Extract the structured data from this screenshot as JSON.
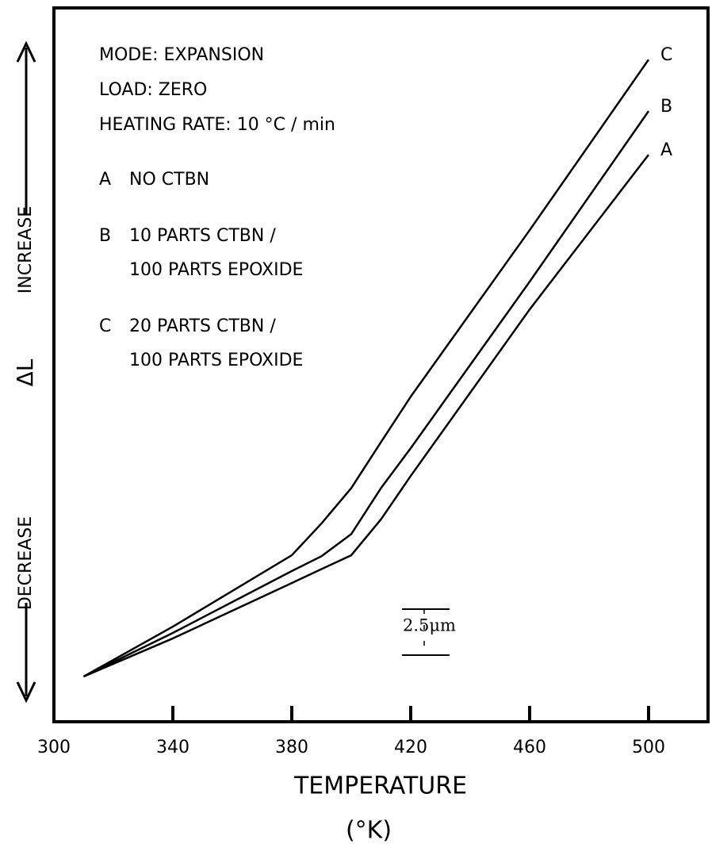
{
  "chart_data": {
    "type": "line",
    "xlabel": "TEMPERATURE",
    "xunit": "(°K)",
    "ylabel": "ΔL",
    "y_increase": "INCREASE",
    "y_decrease": "DECREASE",
    "notes": [
      "MODE: EXPANSION",
      "LOAD: ZERO",
      "HEATING RATE: 10 °C / min"
    ],
    "legend": [
      {
        "key": "A",
        "lines": [
          "NO CTBN"
        ]
      },
      {
        "key": "B",
        "lines": [
          "10 PARTS CTBN /",
          "100 PARTS EPOXIDE"
        ]
      },
      {
        "key": "C",
        "lines": [
          "20 PARTS CTBN /",
          "100 PARTS EPOXIDE"
        ]
      }
    ],
    "x": [
      310,
      340,
      380,
      390,
      400,
      410,
      420,
      460,
      500
    ],
    "series": [
      {
        "name": "A",
        "color": "#000000",
        "values": [
          2.46,
          4.53,
          7.54,
          8.3,
          9.05,
          11.0,
          13.36,
          22.41,
          30.82
        ]
      },
      {
        "name": "B",
        "color": "#000000",
        "values": [
          2.46,
          4.83,
          8.19,
          9.0,
          10.2,
          12.7,
          14.87,
          23.92,
          33.19
        ]
      },
      {
        "name": "C",
        "color": "#000000",
        "values": [
          2.46,
          5.17,
          9.05,
          10.78,
          12.7,
          15.2,
          17.67,
          26.72,
          35.99
        ]
      }
    ],
    "scale_bar": {
      "value": 2.5,
      "label": "2.5μm"
    },
    "xlim": [
      300,
      520
    ],
    "ylim": [
      0,
      38.8
    ],
    "xticks": [
      300,
      340,
      380,
      420,
      460,
      500
    ]
  }
}
